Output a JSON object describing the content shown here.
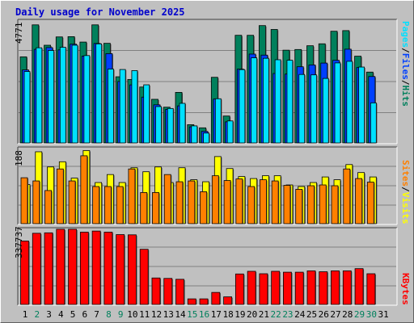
{
  "title": "Daily usage for November 2025",
  "colors": {
    "hits": "#00805c",
    "files": "#0040ff",
    "pages": "#00e0ff",
    "visits": "#ffff00",
    "sites": "#ff8000",
    "kbytes": "#ff0000",
    "weekday": "#000000",
    "weekend": "#00805c"
  },
  "chart_data": [
    {
      "type": "bar",
      "title": "Daily usage for November 2025",
      "max_label": "4771",
      "ylim": [
        0,
        4771
      ],
      "right_label_parts": [
        "Pages",
        "Files",
        "Hits"
      ],
      "categories": [
        "1",
        "2",
        "3",
        "4",
        "5",
        "6",
        "7",
        "8",
        "9",
        "10",
        "11",
        "12",
        "13",
        "14",
        "15",
        "16",
        "17",
        "18",
        "19",
        "20",
        "21",
        "22",
        "23",
        "24",
        "25",
        "26",
        "27",
        "28",
        "29",
        "30",
        "31"
      ],
      "series": [
        {
          "name": "Hits",
          "values": [
            3369,
            4620,
            3823,
            4148,
            4158,
            3947,
            4620,
            3897,
            2589,
            2484,
            2188,
            1707,
            1399,
            1978,
            714,
            591,
            2568,
            1053,
            4212,
            4211,
            4591,
            4440,
            3629,
            3655,
            3803,
            3879,
            4370,
            4395,
            3394,
            2772,
            0
          ]
        },
        {
          "name": "Files",
          "values": [
            2856,
            3662,
            3732,
            3639,
            3864,
            3399,
            3893,
            3494,
            2405,
            2271,
            1793,
            1491,
            1313,
            1450,
            629,
            451,
            1716,
            825,
            2887,
            3476,
            3436,
            2717,
            2694,
            2980,
            3052,
            3125,
            3232,
            3668,
            2949,
            2599,
            0
          ]
        },
        {
          "name": "Pages",
          "values": [
            2794,
            3723,
            3617,
            3744,
            3824,
            3418,
            3876,
            2892,
            2873,
            2830,
            2274,
            1423,
            1348,
            1549,
            667,
            387,
            1729,
            861,
            2869,
            3331,
            3312,
            3255,
            3236,
            2679,
            2664,
            2524,
            3131,
            3194,
            2969,
            1568,
            0
          ]
        }
      ]
    },
    {
      "type": "bar",
      "max_label": "188",
      "ylim": [
        0,
        188
      ],
      "right_label_parts": [
        "Sites",
        "Visits"
      ],
      "categories": [
        "1",
        "2",
        "3",
        "4",
        "5",
        "6",
        "7",
        "8",
        "9",
        "10",
        "11",
        "12",
        "13",
        "14",
        "15",
        "16",
        "17",
        "18",
        "19",
        "20",
        "21",
        "22",
        "23",
        "24",
        "25",
        "26",
        "27",
        "28",
        "29",
        "30",
        "31"
      ],
      "series": [
        {
          "name": "Visits",
          "values": [
            98,
            180,
            142,
            155,
            114,
            183,
            103,
            123,
            103,
            140,
            130,
            142,
            103,
            140,
            110,
            105,
            168,
            138,
            118,
            113,
            120,
            120,
            97,
            93,
            103,
            117,
            110,
            148,
            128,
            117,
            0
          ]
        },
        {
          "name": "Sites",
          "values": [
            115,
            107,
            83,
            137,
            107,
            170,
            93,
            93,
            93,
            137,
            78,
            78,
            123,
            105,
            107,
            80,
            120,
            108,
            112,
            93,
            110,
            107,
            96,
            86,
            95,
            97,
            95,
            137,
            113,
            104,
            0
          ]
        }
      ]
    },
    {
      "type": "bar",
      "max_label": "337737",
      "ylim": [
        0,
        337737
      ],
      "right_label_parts": [
        "KBytes"
      ],
      "categories": [
        "1",
        "2",
        "3",
        "4",
        "5",
        "6",
        "7",
        "8",
        "9",
        "10",
        "11",
        "12",
        "13",
        "14",
        "15",
        "16",
        "17",
        "18",
        "19",
        "20",
        "21",
        "22",
        "23",
        "24",
        "25",
        "26",
        "27",
        "28",
        "29",
        "30",
        "31"
      ],
      "series": [
        {
          "name": "KBytes",
          "values": [
            285000,
            320000,
            322000,
            338000,
            338000,
            325000,
            330000,
            325000,
            314000,
            313000,
            248000,
            119000,
            117000,
            113000,
            25000,
            25000,
            54000,
            34000,
            137000,
            149000,
            138000,
            149000,
            145000,
            145000,
            151000,
            147000,
            151000,
            151000,
            161000,
            138000,
            0
          ]
        }
      ]
    }
  ],
  "days": [
    {
      "label": "1",
      "weekend": false
    },
    {
      "label": "2",
      "weekend": true
    },
    {
      "label": "3",
      "weekend": false
    },
    {
      "label": "4",
      "weekend": false
    },
    {
      "label": "5",
      "weekend": false
    },
    {
      "label": "6",
      "weekend": false
    },
    {
      "label": "7",
      "weekend": false
    },
    {
      "label": "8",
      "weekend": true
    },
    {
      "label": "9",
      "weekend": true
    },
    {
      "label": "10",
      "weekend": false
    },
    {
      "label": "11",
      "weekend": false
    },
    {
      "label": "12",
      "weekend": false
    },
    {
      "label": "13",
      "weekend": false
    },
    {
      "label": "14",
      "weekend": false
    },
    {
      "label": "15",
      "weekend": true
    },
    {
      "label": "16",
      "weekend": true
    },
    {
      "label": "17",
      "weekend": false
    },
    {
      "label": "18",
      "weekend": false
    },
    {
      "label": "19",
      "weekend": false
    },
    {
      "label": "20",
      "weekend": false
    },
    {
      "label": "21",
      "weekend": false
    },
    {
      "label": "22",
      "weekend": true
    },
    {
      "label": "23",
      "weekend": true
    },
    {
      "label": "24",
      "weekend": false
    },
    {
      "label": "25",
      "weekend": false
    },
    {
      "label": "26",
      "weekend": false
    },
    {
      "label": "27",
      "weekend": false
    },
    {
      "label": "28",
      "weekend": false
    },
    {
      "label": "29",
      "weekend": true
    },
    {
      "label": "30",
      "weekend": true
    },
    {
      "label": "31",
      "weekend": false
    }
  ]
}
